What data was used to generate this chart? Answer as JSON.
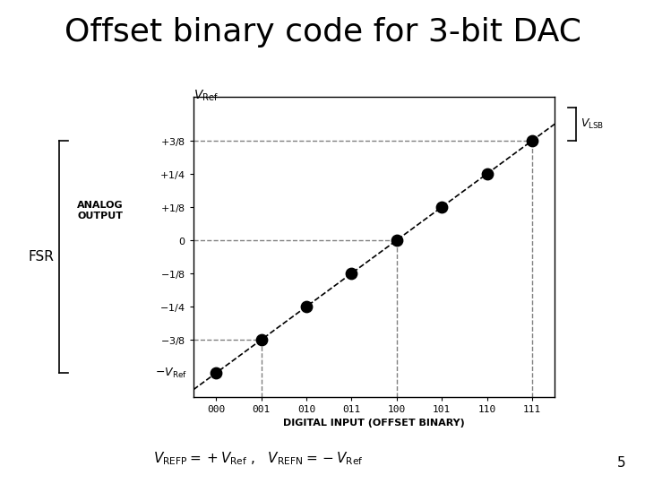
{
  "title": "Offset binary code for 3-bit DAC",
  "title_fontsize": 26,
  "xlabel": "DIGITAL INPUT (OFFSET BINARY)",
  "x_codes": [
    "000",
    "001",
    "010",
    "011",
    "100",
    "101",
    "110",
    "111"
  ],
  "x_vals": [
    0,
    1,
    2,
    3,
    4,
    5,
    6,
    7
  ],
  "y_vals": [
    -1.0,
    -0.75,
    -0.5,
    -0.25,
    0.0,
    0.25,
    0.5,
    0.75
  ],
  "dot_color": "black",
  "dot_size": 80,
  "bg_color": "white",
  "xlim": [
    -0.5,
    7.5
  ],
  "ylim": [
    -1.18,
    1.08
  ],
  "page_number": "5"
}
